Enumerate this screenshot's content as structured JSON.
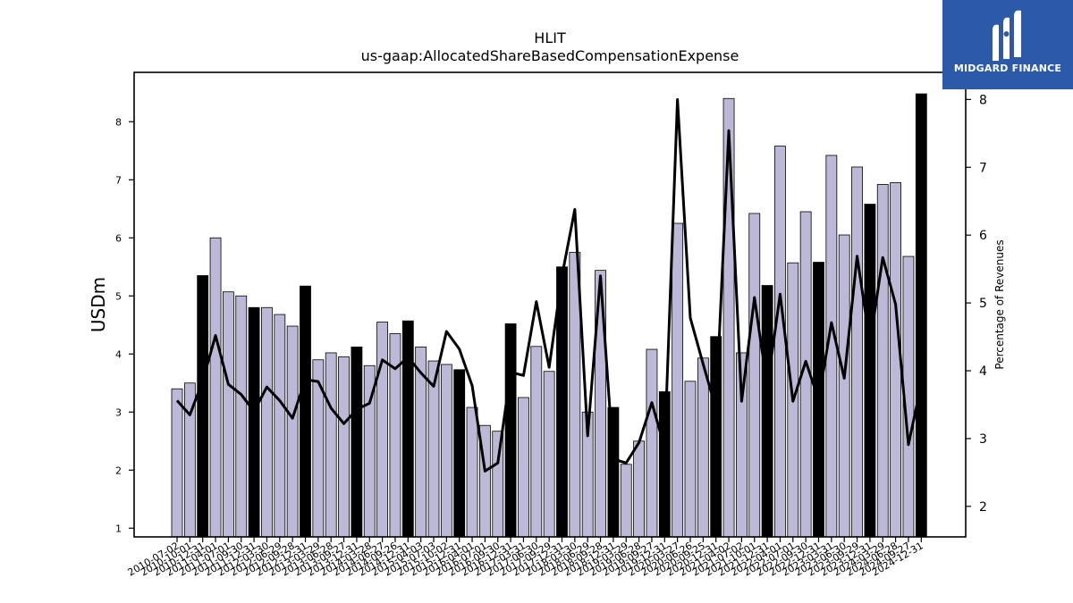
{
  "brand": {
    "name": "MIDGARD FINANCE",
    "bg_color": "#2c5aa8"
  },
  "chart_data": {
    "type": "bar",
    "title": "HLIT",
    "subtitle": "us-gaap:AllocatedShareBasedCompensationExpense",
    "ylabel": "USDm",
    "y2label": "Percentage of Revenues",
    "ylim": [
      0.85,
      8.85
    ],
    "y2lim": [
      1.55,
      8.4
    ],
    "yticks": [
      1,
      2,
      3,
      4,
      5,
      6,
      7,
      8
    ],
    "y2ticks": [
      2,
      3,
      4,
      5,
      6,
      7,
      8
    ],
    "grid": false,
    "bar_color": "#bcb8d8",
    "highlight_color": "#000000",
    "line_color": "#000000",
    "categories": [
      "2010-07-02",
      "2010-10-01",
      "2010-12-31",
      "2011-04-01",
      "2011-07-01",
      "2011-09-30",
      "2011-12-31",
      "2012-03-30",
      "2012-06-29",
      "2012-09-28",
      "2012-12-31",
      "2013-03-29",
      "2013-06-28",
      "2013-09-27",
      "2013-12-31",
      "2014-03-28",
      "2014-06-27",
      "2014-09-26",
      "2014-12-31",
      "2015-04-03",
      "2015-07-03",
      "2015-10-02",
      "2015-12-31",
      "2016-04-01",
      "2016-07-01",
      "2016-09-30",
      "2016-12-31",
      "2017-03-31",
      "2017-06-30",
      "2017-09-29",
      "2017-12-31",
      "2018-03-30",
      "2018-06-29",
      "2018-09-28",
      "2018-12-31",
      "2019-03-29",
      "2019-06-28",
      "2019-09-27",
      "2019-12-31",
      "2020-03-27",
      "2020-06-26",
      "2020-09-25",
      "2020-12-31",
      "2021-04-02",
      "2021-07-02",
      "2021-10-01",
      "2021-12-31",
      "2022-04-01",
      "2022-07-01",
      "2022-09-30",
      "2022-12-31",
      "2023-03-31",
      "2023-06-30",
      "2023-09-29",
      "2023-12-31",
      "2024-03-29",
      "2024-06-28",
      "2024-09-27",
      "2024-12-31"
    ],
    "highlight_indices": [
      2,
      6,
      10,
      14,
      18,
      22,
      26,
      30,
      34,
      38,
      42,
      46,
      50,
      54,
      58
    ],
    "series": [
      {
        "type": "bar",
        "values": [
          3.4,
          3.5,
          5.35,
          6.0,
          5.07,
          5.0,
          4.8,
          4.8,
          4.68,
          4.48,
          5.17,
          3.9,
          4.02,
          3.95,
          4.12,
          3.8,
          4.55,
          4.35,
          4.57,
          4.12,
          3.88,
          3.82,
          3.73,
          3.08,
          2.77,
          2.67,
          4.52,
          3.25,
          4.13,
          3.7,
          5.5,
          5.75,
          3.0,
          5.44,
          3.08,
          2.1,
          2.5,
          4.08,
          3.35,
          6.25,
          3.53,
          3.93,
          4.3,
          8.4,
          4.02,
          6.42,
          5.18,
          7.58,
          5.57,
          6.45,
          5.58,
          7.42,
          6.05,
          7.22,
          6.58,
          6.92,
          6.95,
          5.68,
          8.48
        ]
      },
      {
        "type": "line",
        "values": [
          3.56,
          3.35,
          3.85,
          4.52,
          3.8,
          3.65,
          3.4,
          3.76,
          3.56,
          3.3,
          3.87,
          3.84,
          3.45,
          3.22,
          3.43,
          3.52,
          4.16,
          4.03,
          4.2,
          3.97,
          3.77,
          4.58,
          4.32,
          3.78,
          2.52,
          2.64,
          3.98,
          3.93,
          5.02,
          4.05,
          5.4,
          6.38,
          3.04,
          5.4,
          2.7,
          2.64,
          2.94,
          3.53,
          2.87,
          8.0,
          4.78,
          4.1,
          3.44,
          7.54,
          3.55,
          5.08,
          3.75,
          5.13,
          3.55,
          4.14,
          3.57,
          4.71,
          3.89,
          5.69,
          4.4,
          5.67,
          4.98,
          2.91,
          3.8
        ]
      }
    ]
  }
}
